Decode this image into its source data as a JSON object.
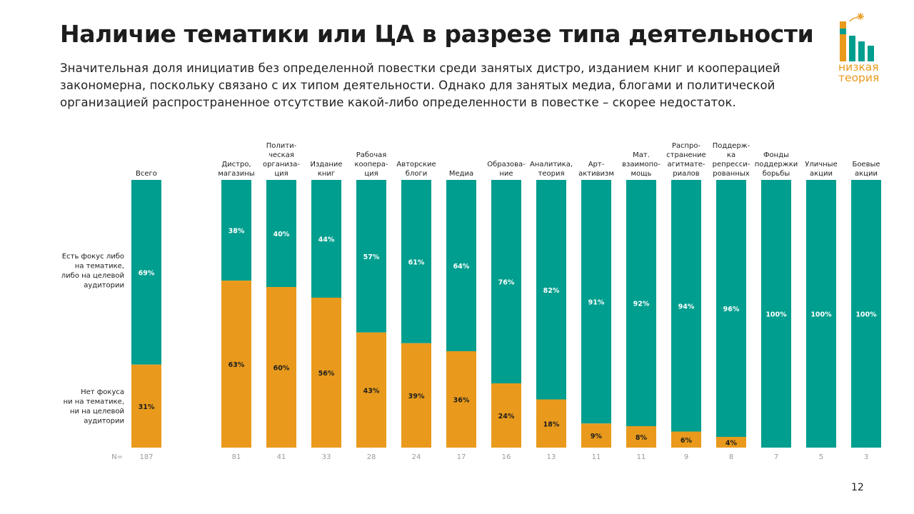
{
  "header": {
    "title": "Наличие тематики или ЦА в разрезе типа деятельности",
    "subtitle": "Значительная доля инициатив без определенной повестки среди занятых дистро, изданием книг и кооперацией закономерна, поскольку связано с их типом деятельности. Однако для занятых медиа, блогами и политической организацией распространенное отсутствие какой-либо определенности в повестке – скорее недостаток."
  },
  "logo": {
    "line1": "низкая",
    "line2": "теория",
    "color": "#E99A1C",
    "accent": "#009E8E"
  },
  "page_number": "12",
  "chart_data": {
    "type": "bar",
    "stacked": true,
    "percent": true,
    "colors": {
      "focus": "#009E8E",
      "no_focus": "#E99A1C"
    },
    "row_labels": {
      "focus": [
        "Есть фокус либо",
        "на тематике,",
        "либо на целевой",
        "аудитории"
      ],
      "no_focus": [
        "Нет фокуса",
        "ни на тематике,",
        "ни на целевой",
        "аудитории"
      ]
    },
    "n_label": "N=",
    "categories": [
      {
        "label": [
          "Всего"
        ],
        "n": 187,
        "focus": 69,
        "no_focus": 31
      },
      {
        "label": [
          "Дистро,",
          "магазины"
        ],
        "n": 81,
        "focus": 38,
        "no_focus": 63
      },
      {
        "label": [
          "Полити-",
          "ческая",
          "организа-",
          "ция"
        ],
        "n": 41,
        "focus": 40,
        "no_focus": 60
      },
      {
        "label": [
          "Издание",
          "книг"
        ],
        "n": 33,
        "focus": 44,
        "no_focus": 56
      },
      {
        "label": [
          "Рабочая",
          "коопера-",
          "ция"
        ],
        "n": 28,
        "focus": 57,
        "no_focus": 43
      },
      {
        "label": [
          "Авторские",
          "блоги"
        ],
        "n": 24,
        "focus": 61,
        "no_focus": 39
      },
      {
        "label": [
          "Медиа"
        ],
        "n": 17,
        "focus": 64,
        "no_focus": 36
      },
      {
        "label": [
          "Образова-",
          "ние"
        ],
        "n": 16,
        "focus": 76,
        "no_focus": 24
      },
      {
        "label": [
          "Аналитика,",
          "теория"
        ],
        "n": 13,
        "focus": 82,
        "no_focus": 18
      },
      {
        "label": [
          "Арт-",
          "активизм"
        ],
        "n": 11,
        "focus": 91,
        "no_focus": 9
      },
      {
        "label": [
          "Мат.",
          "взаимопо-",
          "мощь"
        ],
        "n": 11,
        "focus": 92,
        "no_focus": 8
      },
      {
        "label": [
          "Распро-",
          "странение",
          "агитмате-",
          "риалов"
        ],
        "n": 9,
        "focus": 94,
        "no_focus": 6
      },
      {
        "label": [
          "Поддерж-",
          "ка",
          "репресси-",
          "рованных"
        ],
        "n": 8,
        "focus": 96,
        "no_focus": 4
      },
      {
        "label": [
          "Фонды",
          "поддержки",
          "борьбы"
        ],
        "n": 7,
        "focus": 100,
        "no_focus": 0
      },
      {
        "label": [
          "Уличные",
          "акции"
        ],
        "n": 5,
        "focus": 100,
        "no_focus": 0
      },
      {
        "label": [
          "Боевые",
          "акции"
        ],
        "n": 3,
        "focus": 100,
        "no_focus": 0
      }
    ]
  }
}
